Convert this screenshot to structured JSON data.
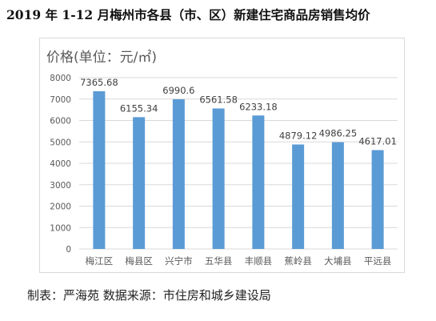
{
  "page": {
    "title": "2019 年 1-12 月梅州市各县（市、区）新建住宅商品房销售均价",
    "footer": "制表：严海苑 数据来源：市住房和城乡建设局"
  },
  "colors": {
    "bar": "#5b9bd5",
    "grid": "#d9d9d9",
    "axis_text": "#595959",
    "label": "#404040"
  },
  "chart_data": {
    "type": "bar",
    "title": "",
    "ylabel": "价格(单位：元/㎡)",
    "xlabel": "",
    "categories": [
      "梅江区",
      "梅县区",
      "兴宁市",
      "五华县",
      "丰顺县",
      "蕉岭县",
      "大埔县",
      "平远县"
    ],
    "values": [
      7365.68,
      6155.34,
      6990.6,
      6561.58,
      6233.18,
      4879.12,
      4986.25,
      4617.01
    ],
    "value_labels": [
      "7365.68",
      "6155.34",
      "6990.6",
      "6561.58",
      "6233.18",
      "4879.12",
      "4986.25",
      "4617.01"
    ],
    "ylim": [
      0,
      8000
    ],
    "yticks": [
      "0",
      "1000",
      "2000",
      "3000",
      "4000",
      "5000",
      "6000",
      "7000",
      "8000"
    ],
    "grid": true,
    "legend": "none"
  }
}
